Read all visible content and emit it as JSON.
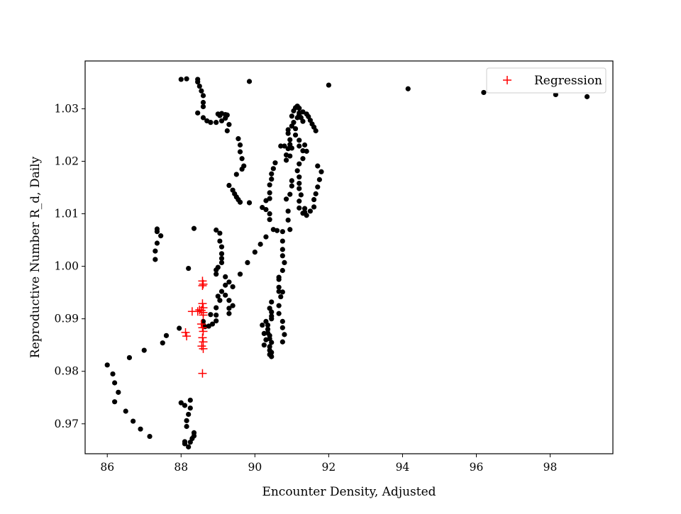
{
  "chart_data": {
    "type": "scatter",
    "title": "",
    "xlabel": "Encounter Density, Adjusted",
    "ylabel": "Reproductive Number R_d, Daily",
    "xlim": [
      85.4,
      99.7
    ],
    "ylim": [
      0.9643,
      1.0391
    ],
    "xticks": [
      86,
      88,
      90,
      92,
      94,
      96,
      98
    ],
    "yticks": [
      0.97,
      0.98,
      0.99,
      1.0,
      1.01,
      1.02,
      1.03
    ],
    "xtick_labels": [
      "86",
      "88",
      "90",
      "92",
      "94",
      "96",
      "98"
    ],
    "ytick_labels": [
      "0.97",
      "0.98",
      "0.99",
      "1.00",
      "1.01",
      "1.02",
      "1.03"
    ],
    "grid": false,
    "legend": {
      "position": "top-right",
      "entries": [
        {
          "label": "Regression",
          "marker": "+",
          "color": "#ff0000"
        }
      ]
    },
    "series": [
      {
        "marker": "circle",
        "color": "#000000",
        "points": [
          [
            88.0,
            1.0356
          ],
          [
            88.15,
            1.0357
          ],
          [
            88.45,
            1.0356
          ],
          [
            88.45,
            1.0351
          ],
          [
            88.5,
            1.0343
          ],
          [
            88.55,
            1.0334
          ],
          [
            88.6,
            1.0325
          ],
          [
            88.6,
            1.0312
          ],
          [
            88.6,
            1.0304
          ],
          [
            88.45,
            1.0292
          ],
          [
            88.6,
            1.0283
          ],
          [
            88.7,
            1.0277
          ],
          [
            88.8,
            1.0274
          ],
          [
            88.95,
            1.0274
          ],
          [
            89.1,
            1.0277
          ],
          [
            89.2,
            1.0282
          ],
          [
            89.3,
            1.027
          ],
          [
            89.25,
            1.0258
          ],
          [
            89.0,
            1.029
          ],
          [
            89.05,
            1.0287
          ],
          [
            89.1,
            1.0291
          ],
          [
            89.2,
            1.0289
          ],
          [
            89.25,
            1.0288
          ],
          [
            89.55,
            1.0243
          ],
          [
            89.6,
            1.0231
          ],
          [
            89.6,
            1.0218
          ],
          [
            89.65,
            1.0205
          ],
          [
            89.7,
            1.0191
          ],
          [
            89.65,
            1.0185
          ],
          [
            89.5,
            1.0175
          ],
          [
            89.3,
            1.0154
          ],
          [
            89.4,
            1.0145
          ],
          [
            89.45,
            1.0138
          ],
          [
            89.5,
            1.0132
          ],
          [
            89.55,
            1.0127
          ],
          [
            89.6,
            1.0122
          ],
          [
            89.85,
            1.0121
          ],
          [
            89.85,
            1.0352
          ],
          [
            92.0,
            1.0345
          ],
          [
            94.15,
            1.0338
          ],
          [
            96.2,
            1.0331
          ],
          [
            98.15,
            1.0327
          ],
          [
            99.0,
            1.0323
          ],
          [
            87.35,
            1.0071
          ],
          [
            87.35,
            1.0066
          ],
          [
            87.45,
            1.0058
          ],
          [
            87.35,
            1.0044
          ],
          [
            87.3,
            1.0029
          ],
          [
            87.3,
            1.0013
          ],
          [
            88.35,
            1.0072
          ],
          [
            88.2,
            0.9996
          ],
          [
            88.95,
            1.0069
          ],
          [
            89.05,
            1.0063
          ],
          [
            89.05,
            1.0048
          ],
          [
            89.1,
            1.0037
          ],
          [
            89.1,
            1.0024
          ],
          [
            89.1,
            1.0015
          ],
          [
            89.1,
            1.0007
          ],
          [
            89.0,
            0.9998
          ],
          [
            88.95,
            0.9993
          ],
          [
            88.95,
            0.9985
          ],
          [
            89.2,
            0.998
          ],
          [
            89.3,
            0.997
          ],
          [
            89.4,
            0.9961
          ],
          [
            89.2,
            0.9964
          ],
          [
            89.1,
            0.9952
          ],
          [
            89.0,
            0.9943
          ],
          [
            89.2,
            0.9945
          ],
          [
            89.3,
            0.9935
          ],
          [
            89.4,
            0.9925
          ],
          [
            89.3,
            0.992
          ],
          [
            89.3,
            0.991
          ],
          [
            89.05,
            0.9935
          ],
          [
            88.95,
            0.9921
          ],
          [
            88.95,
            0.9907
          ],
          [
            88.95,
            0.9896
          ],
          [
            88.85,
            0.989
          ],
          [
            88.75,
            0.9886
          ],
          [
            88.65,
            0.9885
          ],
          [
            88.6,
            0.9889
          ],
          [
            88.6,
            0.9895
          ],
          [
            88.8,
            0.9908
          ],
          [
            89.6,
            0.9985
          ],
          [
            86.0,
            0.9812
          ],
          [
            86.15,
            0.9795
          ],
          [
            86.2,
            0.9778
          ],
          [
            86.3,
            0.976
          ],
          [
            86.2,
            0.9742
          ],
          [
            86.5,
            0.9724
          ],
          [
            86.7,
            0.9705
          ],
          [
            86.9,
            0.969
          ],
          [
            87.15,
            0.9676
          ],
          [
            86.6,
            0.9826
          ],
          [
            87.0,
            0.984
          ],
          [
            87.5,
            0.9854
          ],
          [
            87.6,
            0.9868
          ],
          [
            87.95,
            0.9882
          ],
          [
            88.0,
            0.974
          ],
          [
            88.1,
            0.9735
          ],
          [
            88.25,
            0.9745
          ],
          [
            88.25,
            0.973
          ],
          [
            88.2,
            0.9718
          ],
          [
            88.15,
            0.9706
          ],
          [
            88.15,
            0.9695
          ],
          [
            88.35,
            0.9683
          ],
          [
            88.35,
            0.9677
          ],
          [
            88.3,
            0.9672
          ],
          [
            88.25,
            0.9665
          ],
          [
            88.2,
            0.9656
          ],
          [
            88.1,
            0.9666
          ],
          [
            88.1,
            0.9662
          ],
          [
            89.8,
            1.0007
          ],
          [
            90.0,
            1.0027
          ],
          [
            90.15,
            1.0042
          ],
          [
            90.3,
            1.0056
          ],
          [
            90.5,
            1.007
          ],
          [
            90.6,
            1.0068
          ],
          [
            90.75,
            1.0066
          ],
          [
            90.75,
            1.0048
          ],
          [
            90.75,
            1.0032
          ],
          [
            90.75,
            1.002
          ],
          [
            90.8,
            1.0007
          ],
          [
            90.75,
            0.9992
          ],
          [
            90.65,
            0.9975
          ],
          [
            90.65,
            0.996
          ],
          [
            90.75,
            0.9951
          ],
          [
            90.7,
            0.9942
          ],
          [
            90.65,
            0.9925
          ],
          [
            90.65,
            0.991
          ],
          [
            90.75,
            0.9895
          ],
          [
            90.75,
            0.9883
          ],
          [
            90.8,
            0.987
          ],
          [
            90.75,
            0.9856
          ],
          [
            90.65,
            0.9979
          ],
          [
            90.65,
            0.9952
          ],
          [
            90.2,
            1.0112
          ],
          [
            90.3,
            1.0108
          ],
          [
            90.3,
            1.0125
          ],
          [
            90.4,
            1.0129
          ],
          [
            90.4,
            1.014
          ],
          [
            90.4,
            1.0155
          ],
          [
            90.45,
            1.0166
          ],
          [
            90.45,
            1.0176
          ],
          [
            90.5,
            1.0186
          ],
          [
            90.55,
            1.0197
          ],
          [
            90.4,
            1.01
          ],
          [
            90.4,
            1.0089
          ],
          [
            90.35,
            0.9888
          ],
          [
            90.35,
            0.988
          ],
          [
            90.35,
            0.9873
          ],
          [
            90.4,
            0.9868
          ],
          [
            90.4,
            0.9862
          ],
          [
            90.45,
            0.9855
          ],
          [
            90.4,
            0.9847
          ],
          [
            90.4,
            0.984
          ],
          [
            90.4,
            0.9832
          ],
          [
            90.45,
            0.9836
          ],
          [
            90.45,
            0.9828
          ],
          [
            90.3,
            0.9895
          ],
          [
            90.2,
            0.9888
          ],
          [
            90.25,
            0.9872
          ],
          [
            90.3,
            0.986
          ],
          [
            90.25,
            0.985
          ],
          [
            90.4,
            0.992
          ],
          [
            90.45,
            0.9913
          ],
          [
            90.45,
            0.9932
          ],
          [
            90.45,
            0.9905
          ],
          [
            90.45,
            0.99
          ],
          [
            90.7,
            1.0229
          ],
          [
            90.8,
            1.0229
          ],
          [
            90.9,
            1.0224
          ],
          [
            90.85,
            1.0212
          ],
          [
            90.85,
            1.0202
          ],
          [
            90.95,
            1.021
          ],
          [
            91.0,
            1.0225
          ],
          [
            90.95,
            1.0232
          ],
          [
            90.95,
            1.0241
          ],
          [
            90.9,
            1.0253
          ],
          [
            90.9,
            1.026
          ],
          [
            91.0,
            1.0267
          ],
          [
            91.05,
            1.0274
          ],
          [
            91.0,
            1.0286
          ],
          [
            91.05,
            1.0296
          ],
          [
            91.1,
            1.0302
          ],
          [
            91.15,
            1.0305
          ],
          [
            91.2,
            1.0301
          ],
          [
            91.2,
            1.0292
          ],
          [
            91.25,
            1.0283
          ],
          [
            91.3,
            1.0276
          ],
          [
            91.3,
            1.0294
          ],
          [
            91.4,
            1.029
          ],
          [
            91.45,
            1.0285
          ],
          [
            91.5,
            1.0278
          ],
          [
            91.55,
            1.0271
          ],
          [
            91.6,
            1.0265
          ],
          [
            91.65,
            1.0258
          ],
          [
            91.2,
            1.0288
          ],
          [
            91.15,
            1.0283
          ],
          [
            91.1,
            1.0262
          ],
          [
            91.1,
            1.025
          ],
          [
            91.2,
            1.024
          ],
          [
            91.2,
            1.0229
          ],
          [
            91.3,
            1.022
          ],
          [
            91.3,
            1.0205
          ],
          [
            91.2,
            1.0195
          ],
          [
            91.15,
            1.0182
          ],
          [
            91.2,
            1.017
          ],
          [
            91.2,
            1.0158
          ],
          [
            91.2,
            1.0148
          ],
          [
            91.25,
            1.0136
          ],
          [
            91.2,
            1.0124
          ],
          [
            91.2,
            1.0111
          ],
          [
            91.3,
            1.0101
          ],
          [
            91.4,
            1.0097
          ],
          [
            91.5,
            1.0105
          ],
          [
            91.6,
            1.0113
          ],
          [
            91.6,
            1.0127
          ],
          [
            91.65,
            1.0138
          ],
          [
            91.7,
            1.0151
          ],
          [
            91.75,
            1.0165
          ],
          [
            91.8,
            1.018
          ],
          [
            91.7,
            1.0191
          ],
          [
            91.4,
            1.0219
          ],
          [
            91.35,
            1.0231
          ],
          [
            91.35,
            1.011
          ],
          [
            91.35,
            1.0103
          ],
          [
            90.95,
            1.007
          ],
          [
            90.9,
            1.0088
          ],
          [
            90.9,
            1.0105
          ],
          [
            90.85,
            1.0128
          ],
          [
            90.95,
            1.0137
          ],
          [
            91.0,
            1.0153
          ],
          [
            91.0,
            1.0163
          ]
        ]
      },
      {
        "name": "Regression",
        "marker": "plus",
        "color": "#ff0000",
        "points": [
          [
            88.58,
            0.9972
          ],
          [
            88.6,
            0.9966
          ],
          [
            88.58,
            0.9963
          ],
          [
            88.3,
            0.9914
          ],
          [
            88.45,
            0.9914
          ],
          [
            88.5,
            0.9917
          ],
          [
            88.55,
            0.9916
          ],
          [
            88.6,
            0.9912
          ],
          [
            88.58,
            0.9929
          ],
          [
            88.6,
            0.9921
          ],
          [
            88.6,
            0.9907
          ],
          [
            88.55,
            0.989
          ],
          [
            88.58,
            0.9883
          ],
          [
            88.6,
            0.9876
          ],
          [
            88.58,
            0.9864
          ],
          [
            88.6,
            0.9856
          ],
          [
            88.56,
            0.9848
          ],
          [
            88.6,
            0.9843
          ],
          [
            88.12,
            0.9874
          ],
          [
            88.15,
            0.9867
          ],
          [
            88.58,
            0.9796
          ]
        ]
      }
    ]
  }
}
